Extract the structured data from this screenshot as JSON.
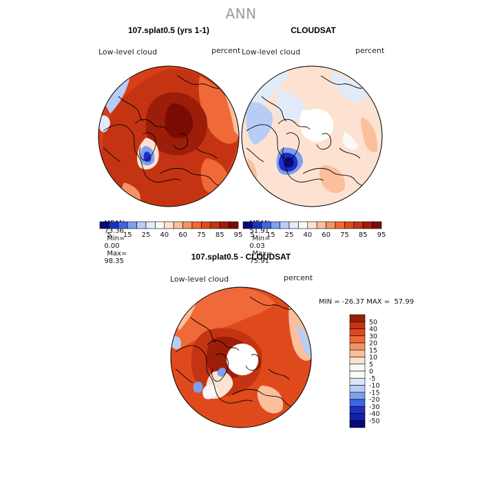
{
  "main_title": "ANN",
  "chart_data": [
    {
      "type": "heatmap",
      "title": "107.splat0.5 (yrs 1-1)",
      "variable": "Low-level cloud",
      "units": "percent",
      "projection": "north polar stereographic",
      "stats": {
        "mean_label": "MEAN=",
        "mean": "73.36",
        "min_label": "Min=",
        "min": "0.00",
        "max_label": "Max=",
        "max": "98.35"
      },
      "colorbar": {
        "orientation": "horizontal",
        "ticks": [
          "5",
          "15",
          "25",
          "40",
          "60",
          "75",
          "85",
          "95"
        ],
        "colors": [
          "#08087a",
          "#1f2fc4",
          "#3e66e0",
          "#7ea0ee",
          "#b8ccf6",
          "#e2ebfa",
          "#f9f9f9",
          "#fde2d2",
          "#fbbf9c",
          "#f69263",
          "#ef6a38",
          "#df4a1c",
          "#c43412",
          "#9c1d09",
          "#7a0c04"
        ]
      }
    },
    {
      "type": "heatmap",
      "title": "CLOUDSAT",
      "variable": "Low-level cloud",
      "units": "percent",
      "projection": "north polar stereographic",
      "stats": {
        "mean_label": "MEAN=",
        "mean": "51.91",
        "min_label": "Min=",
        "min": "0.03",
        "max_label": "Max=",
        "max": "75.91"
      },
      "colorbar": {
        "orientation": "horizontal",
        "ticks": [
          "5",
          "15",
          "25",
          "40",
          "60",
          "75",
          "85",
          "95"
        ],
        "colors": [
          "#08087a",
          "#1f2fc4",
          "#3e66e0",
          "#7ea0ee",
          "#b8ccf6",
          "#e2ebfa",
          "#f9f9f9",
          "#fde2d2",
          "#fbbf9c",
          "#f69263",
          "#ef6a38",
          "#df4a1c",
          "#c43412",
          "#9c1d09",
          "#7a0c04"
        ]
      }
    },
    {
      "type": "heatmap",
      "title": "107.splat0.5 - CLOUDSAT",
      "variable": "Low-level cloud",
      "units": "percent",
      "projection": "north polar stereographic",
      "stats_text": "MIN = -26.37 MAX =  57.99",
      "colorbar": {
        "orientation": "vertical",
        "ticks": [
          "50",
          "40",
          "30",
          "20",
          "15",
          "10",
          "5",
          "0",
          "-5",
          "-10",
          "-15",
          "-20",
          "-30",
          "-40",
          "-50"
        ],
        "colors": [
          "#9c1d09",
          "#c43412",
          "#df4a1c",
          "#ef6a38",
          "#f69263",
          "#fbbf9c",
          "#fde2d2",
          "#f9f9f9",
          "#f9f9f9",
          "#dbe6fa",
          "#b8ccf6",
          "#7ea0ee",
          "#3e66e0",
          "#1f2fc4",
          "#0f22b0",
          "#08087a"
        ]
      }
    }
  ]
}
